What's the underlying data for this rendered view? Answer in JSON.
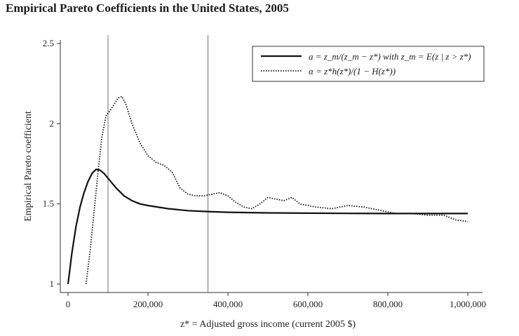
{
  "chart_data": {
    "type": "line",
    "title": "Empirical Pareto Coefficients in the United States, 2005",
    "xlabel": "z* = Adjusted gross income (current 2005 $)",
    "ylabel": "Empirical Pareto coefficient",
    "xlim": [
      0,
      1000000
    ],
    "ylim": [
      1,
      2.5
    ],
    "xticks": [
      0,
      200000,
      400000,
      600000,
      800000,
      1000000
    ],
    "xtick_labels": [
      "0",
      "200,000",
      "400,000",
      "600,000",
      "800,000",
      "1,000,000"
    ],
    "yticks": [
      1,
      1.5,
      2,
      2.5
    ],
    "ytick_labels": [
      "1",
      "1.5",
      "2",
      "2.5"
    ],
    "vlines": [
      100000,
      350000
    ],
    "legend_position": "top-right",
    "series": [
      {
        "name": "a = z_m/(z_m − z*) with z_m = E(z | z > z*)",
        "style": "solid",
        "x": [
          0,
          10000,
          20000,
          30000,
          40000,
          50000,
          60000,
          70000,
          80000,
          90000,
          100000,
          120000,
          140000,
          160000,
          180000,
          200000,
          250000,
          300000,
          350000,
          400000,
          500000,
          600000,
          700000,
          800000,
          900000,
          1000000
        ],
        "y": [
          1.0,
          1.2,
          1.36,
          1.48,
          1.57,
          1.64,
          1.69,
          1.715,
          1.71,
          1.69,
          1.66,
          1.6,
          1.55,
          1.52,
          1.5,
          1.49,
          1.47,
          1.458,
          1.452,
          1.448,
          1.444,
          1.442,
          1.441,
          1.44,
          1.44,
          1.44
        ]
      },
      {
        "name": "α = z*h(z*)/(1 − H(z*))",
        "style": "dotted",
        "x": [
          45000,
          55000,
          65000,
          75000,
          85000,
          95000,
          105000,
          115000,
          125000,
          135000,
          145000,
          160000,
          180000,
          200000,
          220000,
          240000,
          260000,
          280000,
          300000,
          320000,
          340000,
          360000,
          380000,
          400000,
          420000,
          440000,
          460000,
          480000,
          500000,
          520000,
          540000,
          560000,
          580000,
          600000,
          620000,
          660000,
          700000,
          740000,
          780000,
          820000,
          860000,
          900000,
          940000,
          970000,
          1000000
        ],
        "y": [
          1.0,
          1.2,
          1.45,
          1.7,
          1.92,
          2.05,
          2.08,
          2.12,
          2.16,
          2.17,
          2.12,
          2.0,
          1.88,
          1.8,
          1.76,
          1.74,
          1.7,
          1.6,
          1.56,
          1.55,
          1.55,
          1.56,
          1.57,
          1.55,
          1.51,
          1.48,
          1.47,
          1.5,
          1.54,
          1.53,
          1.52,
          1.54,
          1.5,
          1.49,
          1.48,
          1.47,
          1.49,
          1.48,
          1.46,
          1.44,
          1.44,
          1.43,
          1.43,
          1.4,
          1.39
        ]
      }
    ]
  }
}
